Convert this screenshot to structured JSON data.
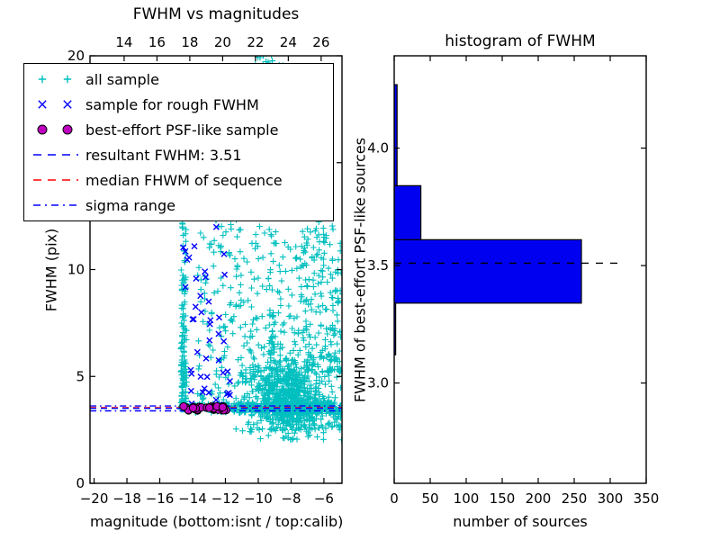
{
  "seed": 1337,
  "colors": {
    "background": "#ffffff",
    "axis": "#000000",
    "all_sample": "#00bfbf",
    "rough_sample": "#0000ff",
    "psf_sample": "#bf00bf",
    "resultant_line": "#0000ff",
    "median_line": "#ff0000",
    "sigma_line": "#0000ff",
    "hist_fill": "#0000f0",
    "hist_edge": "#000000",
    "hist_median_line": "#000000"
  },
  "left_plot": {
    "title": "FWHM vs magnitudes",
    "xlabel": "magnitude (bottom:isnt / top:calib)",
    "ylabel": "FWHM (pix)",
    "xlim": [
      -20.25,
      -4.9
    ],
    "ylim": [
      0,
      20
    ],
    "bottom_ticks": {
      "values": [
        -20,
        -18,
        -16,
        -14,
        -12,
        -10,
        -8,
        -6
      ],
      "labels": [
        "−20",
        "−18",
        "−16",
        "−14",
        "−12",
        "−10",
        "−8",
        "−6"
      ]
    },
    "top_ticks": {
      "labels": [
        "14",
        "16",
        "18",
        "20",
        "22",
        "24",
        "26"
      ],
      "values_isnt": [
        -18.17,
        -16.17,
        -14.17,
        -12.17,
        -10.17,
        -8.17,
        -6.17
      ]
    },
    "y_ticks": {
      "values": [
        0,
        5,
        10,
        15,
        20
      ],
      "labels": [
        "0",
        "5",
        "10",
        "15",
        "20"
      ]
    },
    "legend": {
      "entries": [
        {
          "label": "all sample",
          "marker": "plus",
          "color": "#00bfbf"
        },
        {
          "label": "sample for rough FWHM",
          "marker": "cross",
          "color": "#0000ff"
        },
        {
          "label": "best-effort PSF-like sample",
          "marker": "circle",
          "color": "#bf00bf"
        },
        {
          "label": "resultant FWHM: 3.51",
          "marker": "dashed",
          "color": "#0000ff"
        },
        {
          "label": "median FHWM of sequence",
          "marker": "dashed",
          "color": "#ff0000"
        },
        {
          "label": "sigma range",
          "marker": "dashdot",
          "color": "#0000ff"
        }
      ]
    }
  },
  "right_plot": {
    "title": "histogram of FWHM",
    "xlabel": "number of sources",
    "ylabel": "FWHM of best-effort PSF-like sources",
    "xlim": [
      0,
      350
    ],
    "ylim": [
      2.573,
      4.393
    ],
    "x_ticks": {
      "values": [
        0,
        50,
        100,
        150,
        200,
        250,
        300,
        350
      ],
      "labels": [
        "0",
        "50",
        "100",
        "150",
        "200",
        "250",
        "300",
        "350"
      ]
    },
    "y_ticks": {
      "values": [
        3.0,
        3.5,
        4.0
      ],
      "labels": [
        "3.0",
        "3.5",
        "4.0"
      ]
    }
  },
  "chart_data": [
    {
      "type": "scatter",
      "title": "FWHM vs magnitudes",
      "xlabel": "magnitude (bottom:isnt / top:calib)",
      "ylabel": "FWHM (pix)",
      "xlim": [
        -20.25,
        -4.9
      ],
      "ylim": [
        0,
        20
      ],
      "series": [
        {
          "name": "all sample",
          "marker": "+",
          "color": "#00bfbf",
          "clusters": [
            {
              "n": 155,
              "x": [
                -14.72,
                -14.36
              ],
              "y": [
                3.45,
                12.0
              ],
              "ypow": 1.9
            },
            {
              "n": 10,
              "x": [
                -14.78,
                -14.3
              ],
              "y": [
                12.0,
                19.8
              ]
            },
            {
              "n": 260,
              "x": [
                -13.7,
                -8.9
              ],
              "y": [
                3.9,
                13.6
              ],
              "ypow": 1.25
            },
            {
              "n": 100,
              "x": [
                -11.3,
                -7.4
              ],
              "y": [
                13.0,
                19.6
              ]
            },
            {
              "n": 34,
              "x": [
                -10.4,
                -8.6
              ],
              "y": [
                19.2,
                20.6
              ]
            },
            {
              "n": 620,
              "gaussian": true,
              "cx": -8.3,
              "cy": 4.05,
              "sx": 1.1,
              "sy": 0.9,
              "ymin": 2.45
            },
            {
              "n": 380,
              "x": [
                -14.6,
                -4.85
              ],
              "y": [
                3.3,
                3.8
              ],
              "xpow": 0.62
            },
            {
              "n": 200,
              "x": [
                -9.4,
                -5.0
              ],
              "y": [
                5.2,
                12.3
              ],
              "ypow": 1.4
            },
            {
              "n": 140,
              "x": [
                -7.3,
                -4.85
              ],
              "y": [
                2.6,
                12.0
              ],
              "ypow": 1.6
            },
            {
              "n": 60,
              "x": [
                -10.6,
                -4.9
              ],
              "y": [
                2.0,
                3.3
              ]
            }
          ]
        },
        {
          "name": "sample for rough FWHM",
          "marker": "x",
          "color": "#0000ff",
          "clusters": [
            {
              "n": 30,
              "x": [
                -14.7,
                -11.7
              ],
              "y": [
                3.6,
                8.5
              ],
              "ypow": 1.5
            },
            {
              "n": 14,
              "x": [
                -14.6,
                -11.9
              ],
              "y": [
                8.5,
                12.6
              ]
            }
          ]
        },
        {
          "name": "best-effort PSF-like sample",
          "marker": "o",
          "color": "#bf00bf",
          "clusters": [
            {
              "n": 38,
              "x": [
                -14.62,
                -11.95
              ],
              "y": [
                3.41,
                3.6
              ]
            }
          ]
        }
      ],
      "hlines": [
        {
          "name": "sigma-upper",
          "y": 3.62,
          "style": "dashdot",
          "color": "#0000ff"
        },
        {
          "name": "sigma-lower",
          "y": 3.39,
          "style": "dashdot",
          "color": "#0000ff"
        },
        {
          "name": "median-fwhm",
          "y": 3.54,
          "style": "dashed",
          "color": "#ff0000"
        },
        {
          "name": "resultant-fwhm",
          "y": 3.51,
          "style": "dashed",
          "color": "#0000ff"
        }
      ],
      "resultant_fwhm": 3.51
    },
    {
      "type": "barh-histogram",
      "title": "histogram of FWHM",
      "xlabel": "number of sources",
      "ylabel": "FWHM of best-effort PSF-like sources",
      "xlim": [
        0,
        350
      ],
      "ylim": [
        2.573,
        4.393
      ],
      "bins": [
        {
          "y0": 3.12,
          "y1": 3.34,
          "count": 2
        },
        {
          "y0": 3.34,
          "y1": 3.61,
          "count": 260
        },
        {
          "y0": 3.61,
          "y1": 3.84,
          "count": 37
        },
        {
          "y0": 3.84,
          "y1": 4.27,
          "count": 4
        }
      ],
      "median_line": {
        "y": 3.51,
        "x_start": 0,
        "x_end": 315,
        "style": "dashed",
        "color": "#000000"
      }
    }
  ]
}
